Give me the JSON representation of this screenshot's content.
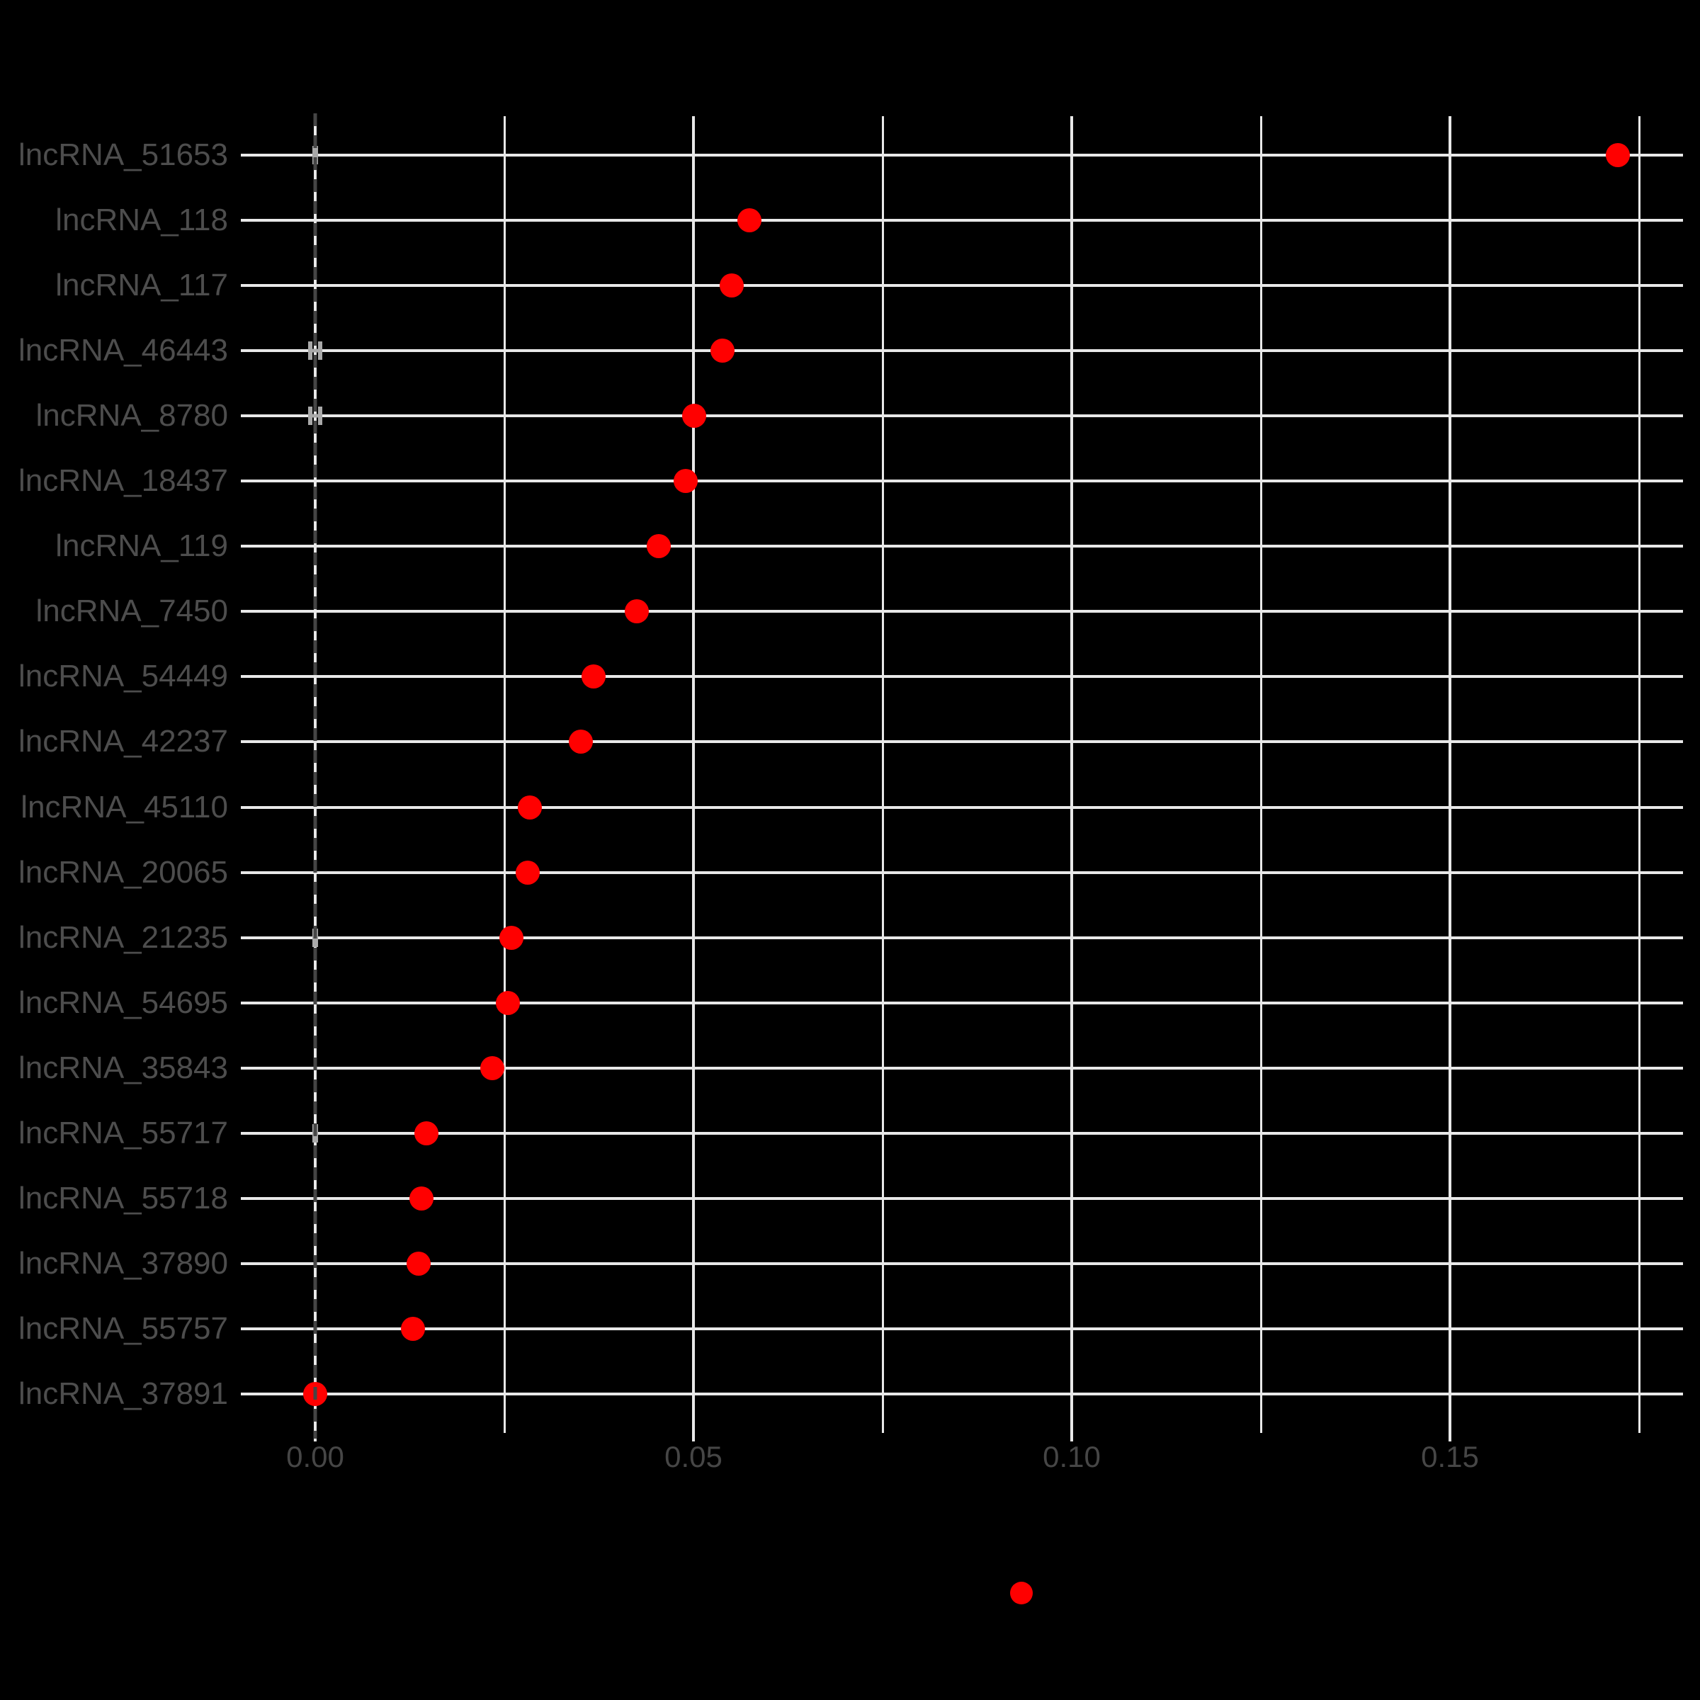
{
  "chart_data": {
    "type": "scatter",
    "subtype": "horizontal-dot-plot",
    "title": "",
    "categories": [
      "lncRNA_51653",
      "lncRNA_118",
      "lncRNA_117",
      "lncRNA_46443",
      "lncRNA_8780",
      "lncRNA_18437",
      "lncRNA_119",
      "lncRNA_7450",
      "lncRNA_54449",
      "lncRNA_42237",
      "lncRNA_45110",
      "lncRNA_20065",
      "lncRNA_21235",
      "lncRNA_54695",
      "lncRNA_35843",
      "lncRNA_55717",
      "lncRNA_55718",
      "lncRNA_37890",
      "lncRNA_55757",
      "lncRNA_37891"
    ],
    "values": [
      0.1722,
      0.0574,
      0.0551,
      0.0538,
      0.0501,
      0.049,
      0.0454,
      0.0425,
      0.0368,
      0.0351,
      0.0284,
      0.0281,
      0.0259,
      0.0255,
      0.0234,
      0.0147,
      0.014,
      0.0137,
      0.0129,
      0.0
    ],
    "xlabel": "",
    "ylabel": "",
    "xlim": [
      -0.0087,
      0.1808
    ],
    "x_axis": {
      "tick_labels": [
        "0.00",
        "0.05",
        "0.10",
        "0.15"
      ],
      "tick_values": [
        0.0,
        0.05,
        0.1,
        0.15
      ],
      "minor_tick_values": [
        0.025,
        0.075,
        0.125,
        0.175
      ]
    },
    "zero_reference_line": {
      "x": 0.0,
      "style": "dashed",
      "color": "#454545"
    },
    "error_marks": [
      {
        "category": "lncRNA_51653",
        "half_width": 0.0002
      },
      {
        "category": "lncRNA_46443",
        "half_width": 0.00066
      },
      {
        "category": "lncRNA_8780",
        "half_width": 0.00066
      },
      {
        "category": "lncRNA_21235",
        "half_width": 0.0002
      },
      {
        "category": "lncRNA_55717",
        "half_width": 0.0002
      }
    ],
    "grid": "on",
    "legend": {
      "position": "bottom-center",
      "marker": "point",
      "marker_color": "#FF0000"
    },
    "colors": {
      "background": "#000000",
      "gridline": "#E8E8E8",
      "axis_text": "#4D4D4D",
      "point": "#FF0000",
      "zero_line": "#454545",
      "error_mark": "#A9A9A9"
    }
  }
}
